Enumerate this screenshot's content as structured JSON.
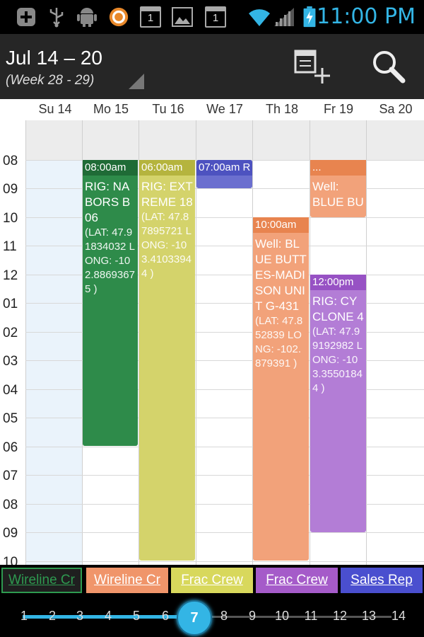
{
  "status_bar": {
    "time": "11:00 PM",
    "icons": [
      "add-notification-icon",
      "usb-icon",
      "android-debug-icon",
      "app-notification-icon",
      "calendar-day-icon",
      "image-icon",
      "calendar-day-icon",
      "wifi-icon",
      "cell-signal-icon",
      "battery-charging-icon"
    ],
    "calendar_badge": "1"
  },
  "action_bar": {
    "title": "Jul 14 – 20",
    "subtitle": "(Week 28 - 29)",
    "icons": [
      "add-event-icon",
      "search-icon"
    ]
  },
  "day_headers": [
    "Su 14",
    "Mo 15",
    "Tu 16",
    "We 17",
    "Th 18",
    "Fr 19",
    "Sa 20"
  ],
  "hours": [
    "08",
    "09",
    "10",
    "11",
    "12",
    "01",
    "02",
    "03",
    "04",
    "05",
    "06",
    "07",
    "08",
    "09",
    "10"
  ],
  "events": [
    {
      "time": "08:00am",
      "title": "RIG: NABORS B06",
      "coords": "(LAT: 47.91834032 LONG: -102.88693675 )",
      "color": "#2e8b4a",
      "header_color": "#1f6b36"
    },
    {
      "time": "06:00am",
      "title": "RIG: EXTREME 18",
      "coords": "(LAT: 47.87895721 LONG: -103.41033944 )",
      "color": "#d4d36b",
      "header_color": "#b5b43e"
    },
    {
      "time": "07:00am R",
      "title": "",
      "coords": "",
      "color": "#6b6fcf",
      "header_color": "#4d52c0"
    },
    {
      "time": "10:00am",
      "title": "Well: BLUE BUTTES-MADISON UNIT G-431",
      "coords": "(LAT: 47.852839 LONG: -102.879391 )",
      "color": "#f2a27a",
      "header_color": "#e8844f"
    },
    {
      "time": "...",
      "title": "Well: BLUE BU",
      "coords": "",
      "color": "#f2a27a",
      "header_color": "#e8844f"
    },
    {
      "time": "12:00pm",
      "title": "RIG: CYCLONE 4",
      "coords": "(LAT: 47.99192982 LONG: -103.35501844 )",
      "color": "#b37dd6",
      "header_color": "#9752c4"
    }
  ],
  "crew_tabs": [
    {
      "label": "Wireline Cr",
      "bg": "#1f1f1f",
      "color": "#2e9a50",
      "border": "#2e9a50"
    },
    {
      "label": "Wireline Cr",
      "bg": "#f0956a",
      "color": "#ffffff",
      "border": "#f0956a"
    },
    {
      "label": "Frac Crew",
      "bg": "#d8d85c",
      "color": "#ffffff",
      "border": "#d8d85c"
    },
    {
      "label": "Frac Crew",
      "bg": "#a55bc9",
      "color": "#ffffff",
      "border": "#a55bc9"
    },
    {
      "label": "Sales Rep",
      "bg": "#4a4fcf",
      "color": "#ffffff",
      "border": "#4a4fcf"
    }
  ],
  "week_slider": {
    "numbers": [
      "1",
      "2",
      "3",
      "4",
      "5",
      "6",
      "7",
      "8",
      "9",
      "10",
      "11",
      "12",
      "13",
      "14"
    ],
    "selected": "7",
    "accent": "#33b5e5"
  }
}
